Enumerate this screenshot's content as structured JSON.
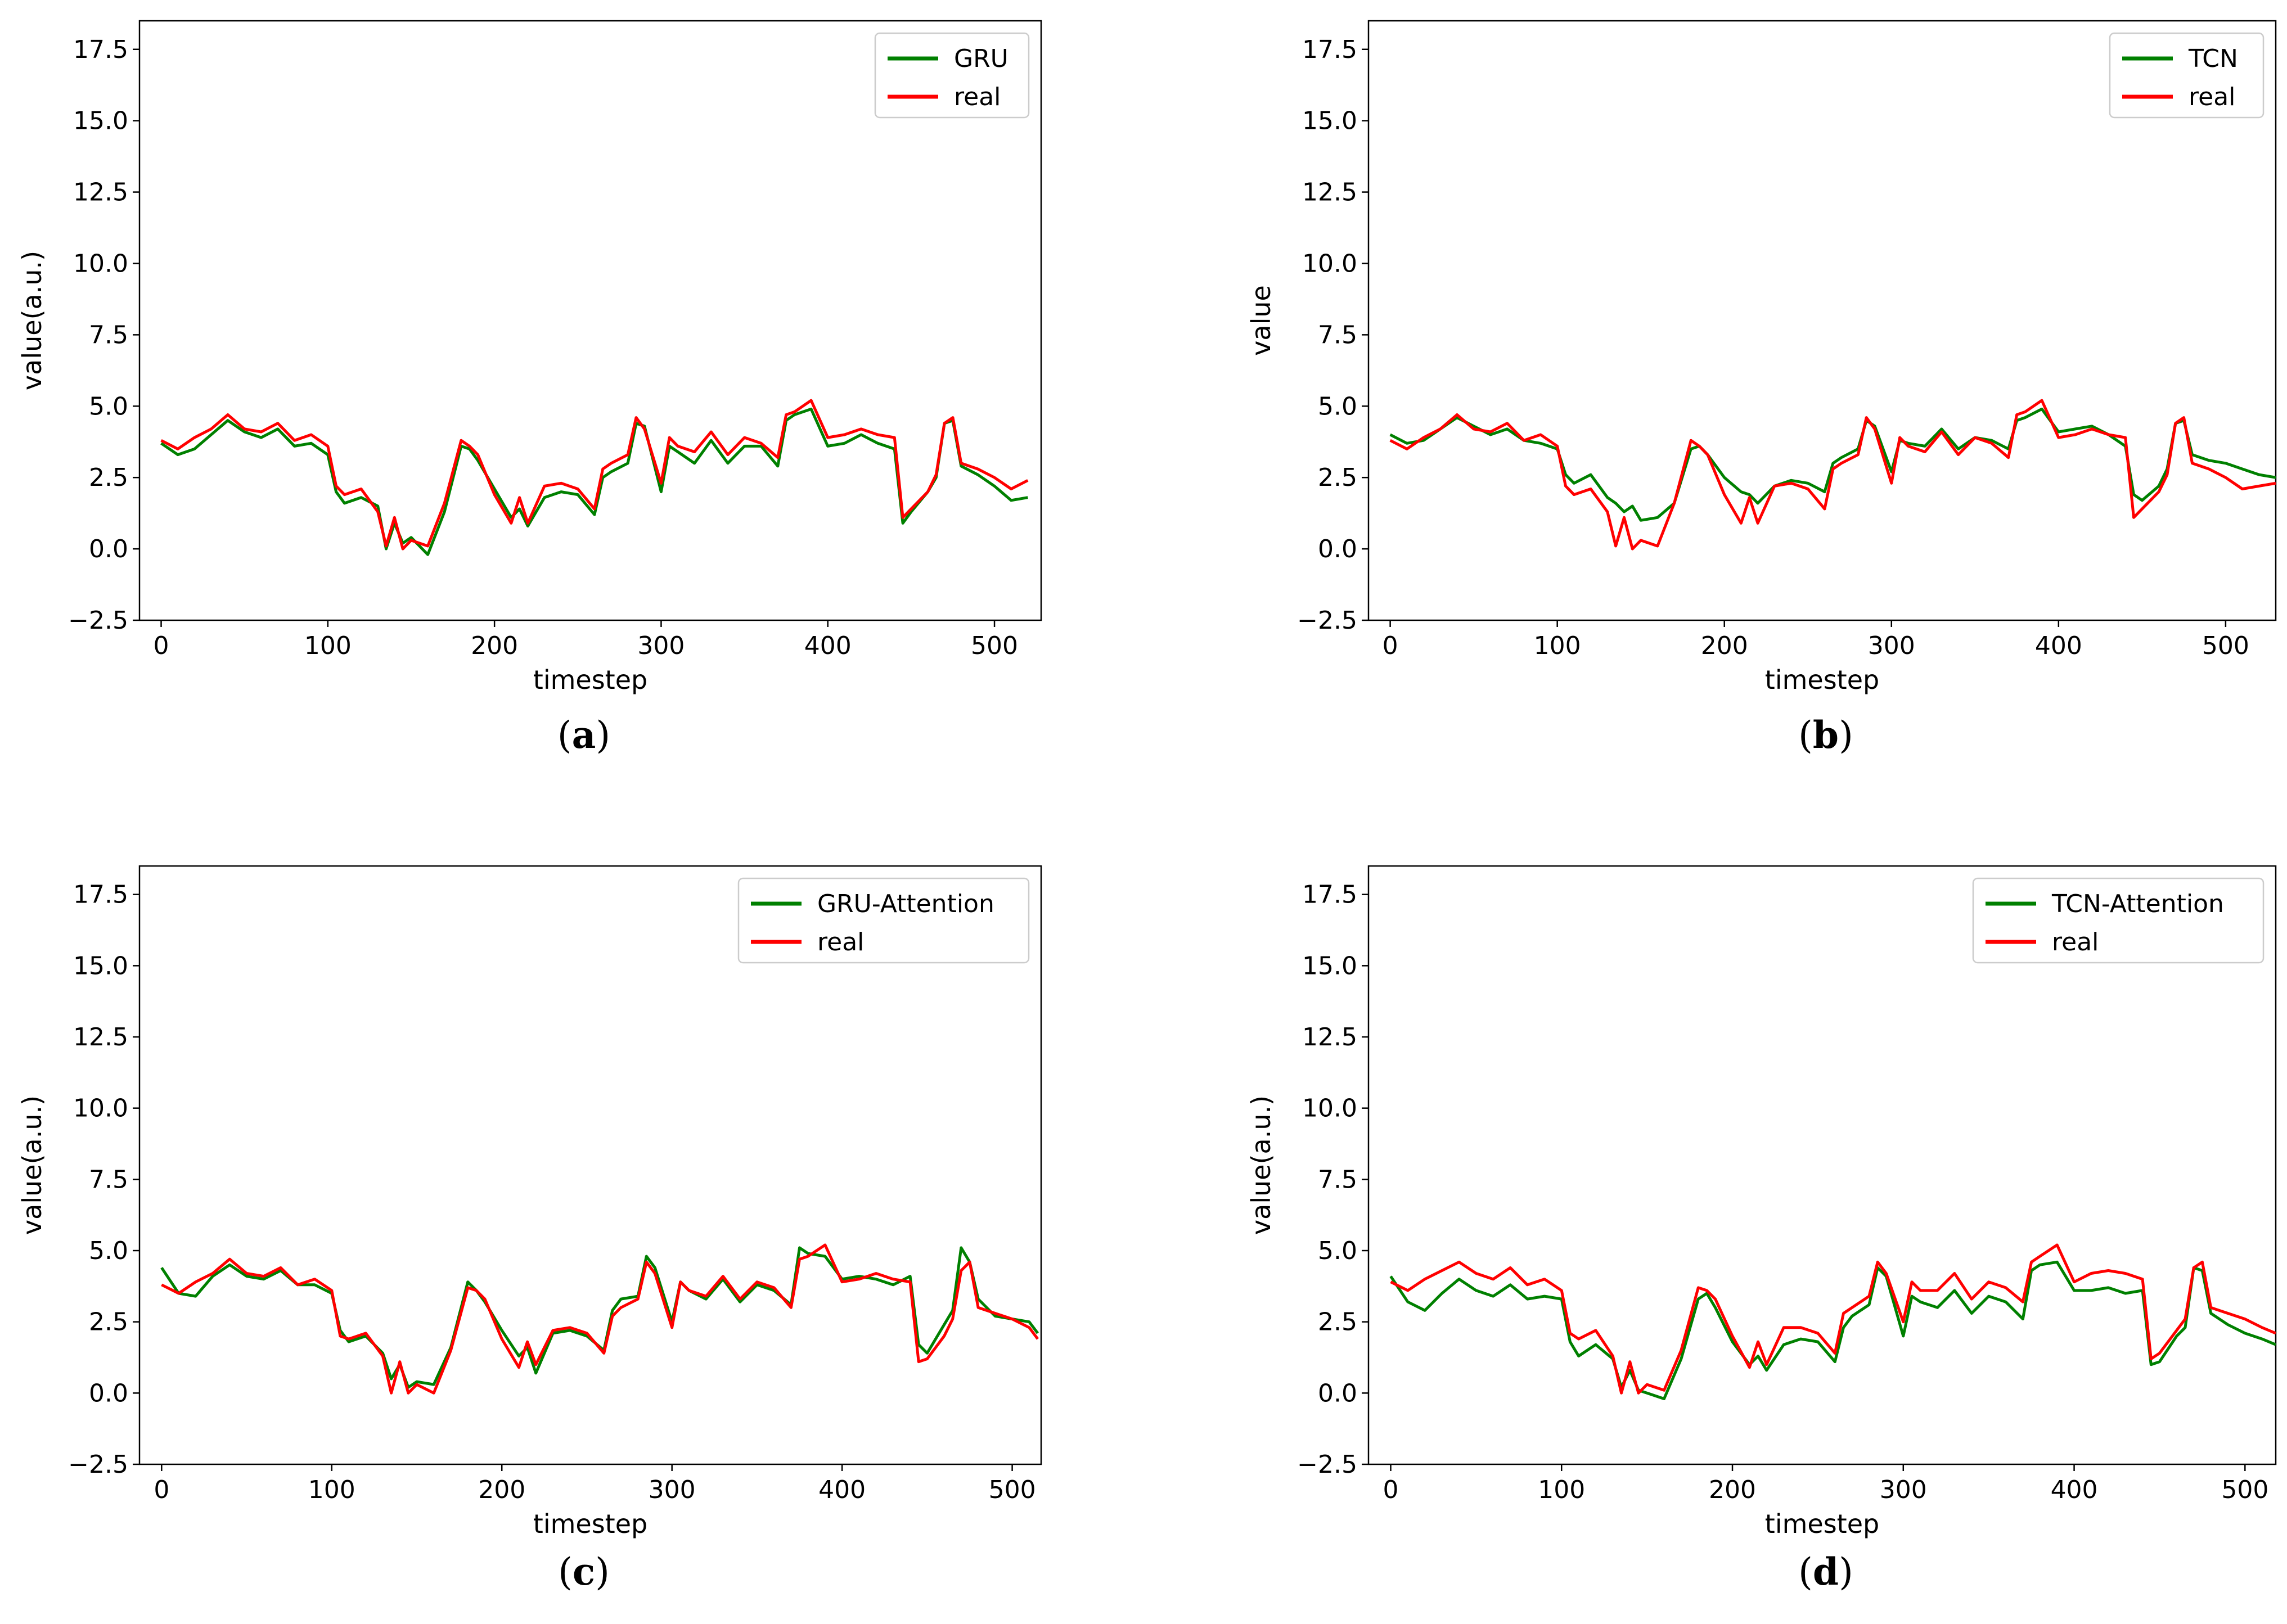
{
  "figure": {
    "panel_count": 4
  },
  "colors": {
    "prediction": "#008000",
    "real": "#ff0000",
    "axis": "#000000",
    "legend_edge": "#cccccc"
  },
  "chart_data": [
    {
      "type": "line",
      "panel": "a",
      "caption": {
        "open": "(",
        "letter": "a",
        "close": ")"
      },
      "title": "",
      "xlabel": "timestep",
      "ylabel": "value(a.u.)",
      "xlim": [
        -13,
        528
      ],
      "ylim": [
        -2.5,
        18.5
      ],
      "xticks": [
        0,
        100,
        200,
        300,
        400,
        500
      ],
      "yticks": [
        -2.5,
        0.0,
        2.5,
        5.0,
        7.5,
        10.0,
        12.5,
        15.0,
        17.5
      ],
      "ytick_labels": [
        "−2.5",
        "0.0",
        "2.5",
        "5.0",
        "7.5",
        "10.0",
        "12.5",
        "15.0",
        "17.5"
      ],
      "xtick_labels": [
        "0",
        "100",
        "200",
        "300",
        "400",
        "500"
      ],
      "legend": {
        "position": "top-right",
        "entries": [
          "GRU",
          "real"
        ]
      },
      "x": [
        0,
        10,
        20,
        30,
        40,
        50,
        60,
        70,
        80,
        90,
        100,
        105,
        110,
        120,
        130,
        135,
        140,
        145,
        150,
        160,
        170,
        180,
        185,
        190,
        200,
        210,
        215,
        220,
        230,
        240,
        250,
        260,
        265,
        270,
        280,
        285,
        290,
        300,
        305,
        310,
        320,
        330,
        340,
        350,
        360,
        370,
        375,
        380,
        390,
        400,
        410,
        420,
        430,
        440,
        445,
        450,
        460,
        465,
        470,
        475,
        480,
        490,
        500,
        510,
        520
      ],
      "series": [
        {
          "name": "GRU",
          "values": [
            3.7,
            3.3,
            3.5,
            4.0,
            4.5,
            4.1,
            3.9,
            4.2,
            3.6,
            3.7,
            3.3,
            2.0,
            1.6,
            1.8,
            1.5,
            0.0,
            0.9,
            0.2,
            0.4,
            -0.2,
            1.3,
            3.6,
            3.5,
            3.1,
            2.1,
            1.1,
            1.4,
            0.8,
            1.8,
            2.0,
            1.9,
            1.2,
            2.5,
            2.7,
            3.0,
            4.4,
            4.3,
            2.0,
            3.6,
            3.4,
            3.0,
            3.8,
            3.0,
            3.6,
            3.6,
            2.9,
            4.5,
            4.7,
            4.9,
            3.6,
            3.7,
            4.0,
            3.7,
            3.5,
            0.9,
            1.3,
            2.0,
            2.5,
            4.4,
            4.5,
            2.9,
            2.6,
            2.2,
            1.7,
            1.8
          ]
        },
        {
          "name": "real",
          "values": [
            3.8,
            3.5,
            3.9,
            4.2,
            4.7,
            4.2,
            4.1,
            4.4,
            3.8,
            4.0,
            3.6,
            2.2,
            1.9,
            2.1,
            1.3,
            0.1,
            1.1,
            0.0,
            0.3,
            0.1,
            1.6,
            3.8,
            3.6,
            3.3,
            1.9,
            0.9,
            1.8,
            0.9,
            2.2,
            2.3,
            2.1,
            1.4,
            2.8,
            3.0,
            3.3,
            4.6,
            4.2,
            2.3,
            3.9,
            3.6,
            3.4,
            4.1,
            3.3,
            3.9,
            3.7,
            3.2,
            4.7,
            4.8,
            5.2,
            3.9,
            4.0,
            4.2,
            4.0,
            3.9,
            1.1,
            1.4,
            2.0,
            2.6,
            4.4,
            4.6,
            3.0,
            2.8,
            2.5,
            2.1,
            2.4
          ]
        }
      ]
    },
    {
      "type": "line",
      "panel": "b",
      "caption": {
        "open": "(",
        "letter": "b",
        "close": ")"
      },
      "title": "",
      "xlabel": "timestep",
      "ylabel": "value",
      "xlim": [
        -13,
        530
      ],
      "ylim": [
        -2.5,
        18.5
      ],
      "xticks": [
        0,
        100,
        200,
        300,
        400,
        500
      ],
      "yticks": [
        -2.5,
        0.0,
        2.5,
        5.0,
        7.5,
        10.0,
        12.5,
        15.0,
        17.5
      ],
      "ytick_labels": [
        "−2.5",
        "0.0",
        "2.5",
        "5.0",
        "7.5",
        "10.0",
        "12.5",
        "15.0",
        "17.5"
      ],
      "xtick_labels": [
        "0",
        "100",
        "200",
        "300",
        "400",
        "500"
      ],
      "legend": {
        "position": "top-right",
        "entries": [
          "TCN",
          "real"
        ]
      },
      "x": [
        0,
        10,
        20,
        30,
        40,
        50,
        60,
        70,
        80,
        90,
        100,
        105,
        110,
        120,
        130,
        135,
        140,
        145,
        150,
        160,
        170,
        180,
        185,
        190,
        200,
        210,
        215,
        220,
        230,
        240,
        250,
        260,
        265,
        270,
        280,
        285,
        290,
        300,
        305,
        310,
        320,
        330,
        340,
        350,
        360,
        370,
        375,
        380,
        390,
        400,
        410,
        420,
        430,
        440,
        445,
        450,
        460,
        465,
        470,
        475,
        480,
        490,
        500,
        510,
        520,
        530
      ],
      "series": [
        {
          "name": "TCN",
          "values": [
            4.0,
            3.7,
            3.8,
            4.2,
            4.6,
            4.3,
            4.0,
            4.2,
            3.8,
            3.7,
            3.5,
            2.6,
            2.3,
            2.6,
            1.8,
            1.6,
            1.3,
            1.5,
            1.0,
            1.1,
            1.6,
            3.5,
            3.6,
            3.3,
            2.5,
            2.0,
            1.9,
            1.6,
            2.2,
            2.4,
            2.3,
            2.0,
            3.0,
            3.2,
            3.5,
            4.5,
            4.3,
            2.7,
            3.8,
            3.7,
            3.6,
            4.2,
            3.5,
            3.9,
            3.8,
            3.5,
            4.5,
            4.6,
            4.9,
            4.1,
            4.2,
            4.3,
            4.0,
            3.6,
            1.9,
            1.7,
            2.2,
            2.8,
            4.4,
            4.5,
            3.3,
            3.1,
            3.0,
            2.8,
            2.6,
            2.5
          ]
        },
        {
          "name": "real",
          "values": [
            3.8,
            3.5,
            3.9,
            4.2,
            4.7,
            4.2,
            4.1,
            4.4,
            3.8,
            4.0,
            3.6,
            2.2,
            1.9,
            2.1,
            1.3,
            0.1,
            1.1,
            0.0,
            0.3,
            0.1,
            1.6,
            3.8,
            3.6,
            3.3,
            1.9,
            0.9,
            1.8,
            0.9,
            2.2,
            2.3,
            2.1,
            1.4,
            2.8,
            3.0,
            3.3,
            4.6,
            4.2,
            2.3,
            3.9,
            3.6,
            3.4,
            4.1,
            3.3,
            3.9,
            3.7,
            3.2,
            4.7,
            4.8,
            5.2,
            3.9,
            4.0,
            4.2,
            4.0,
            3.9,
            1.1,
            1.4,
            2.0,
            2.6,
            4.4,
            4.6,
            3.0,
            2.8,
            2.5,
            2.1,
            2.2,
            2.3
          ]
        }
      ]
    },
    {
      "type": "line",
      "panel": "c",
      "caption": {
        "open": "(",
        "letter": "c",
        "close": ")"
      },
      "title": "",
      "xlabel": "timestep",
      "ylabel": "value(a.u.)",
      "xlim": [
        -13,
        517
      ],
      "ylim": [
        -2.5,
        18.5
      ],
      "xticks": [
        0,
        100,
        200,
        300,
        400,
        500
      ],
      "yticks": [
        -2.5,
        0.0,
        2.5,
        5.0,
        7.5,
        10.0,
        12.5,
        15.0,
        17.5
      ],
      "ytick_labels": [
        "−2.5",
        "0.0",
        "2.5",
        "5.0",
        "7.5",
        "10.0",
        "12.5",
        "15.0",
        "17.5"
      ],
      "xtick_labels": [
        "0",
        "100",
        "200",
        "300",
        "400",
        "500"
      ],
      "legend": {
        "position": "top-right",
        "entries": [
          "GRU-Attention",
          "real"
        ]
      },
      "x": [
        0,
        10,
        20,
        30,
        40,
        50,
        60,
        70,
        80,
        90,
        100,
        105,
        110,
        120,
        130,
        135,
        140,
        145,
        150,
        160,
        170,
        180,
        185,
        190,
        200,
        210,
        215,
        220,
        230,
        240,
        250,
        260,
        265,
        270,
        280,
        285,
        290,
        300,
        305,
        310,
        320,
        330,
        340,
        350,
        360,
        370,
        375,
        380,
        390,
        400,
        410,
        420,
        430,
        440,
        445,
        450,
        460,
        465,
        470,
        475,
        480,
        490,
        500,
        510,
        515
      ],
      "series": [
        {
          "name": "GRU-Attention",
          "values": [
            4.4,
            3.5,
            3.4,
            4.1,
            4.5,
            4.1,
            4.0,
            4.3,
            3.8,
            3.8,
            3.5,
            2.2,
            1.8,
            2.0,
            1.4,
            0.5,
            1.0,
            0.2,
            0.4,
            0.3,
            1.6,
            3.9,
            3.6,
            3.2,
            2.2,
            1.3,
            1.6,
            0.7,
            2.1,
            2.2,
            2.0,
            1.5,
            2.9,
            3.3,
            3.4,
            4.8,
            4.4,
            2.5,
            3.9,
            3.6,
            3.3,
            4.0,
            3.2,
            3.8,
            3.6,
            3.1,
            5.1,
            4.9,
            4.8,
            4.0,
            4.1,
            4.0,
            3.8,
            4.1,
            1.7,
            1.4,
            2.4,
            2.9,
            5.1,
            4.6,
            3.3,
            2.7,
            2.6,
            2.5,
            2.1
          ]
        },
        {
          "name": "real",
          "values": [
            3.8,
            3.5,
            3.9,
            4.2,
            4.7,
            4.2,
            4.1,
            4.4,
            3.8,
            4.0,
            3.6,
            2.0,
            1.9,
            2.1,
            1.3,
            0.0,
            1.1,
            0.0,
            0.3,
            0.0,
            1.5,
            3.7,
            3.6,
            3.3,
            1.9,
            0.9,
            1.8,
            1.0,
            2.2,
            2.3,
            2.1,
            1.4,
            2.7,
            3.0,
            3.3,
            4.6,
            4.2,
            2.3,
            3.9,
            3.6,
            3.4,
            4.1,
            3.3,
            3.9,
            3.7,
            3.0,
            4.7,
            4.8,
            5.2,
            3.9,
            4.0,
            4.2,
            4.0,
            3.9,
            1.1,
            1.2,
            2.0,
            2.6,
            4.3,
            4.6,
            3.0,
            2.8,
            2.6,
            2.3,
            1.9
          ]
        }
      ]
    },
    {
      "type": "line",
      "panel": "d",
      "caption": {
        "open": "(",
        "letter": "d",
        "close": ")"
      },
      "title": "",
      "xlabel": "timestep",
      "ylabel": "value(a.u.)",
      "xlim": [
        -13,
        518
      ],
      "ylim": [
        -2.5,
        18.5
      ],
      "xticks": [
        0,
        100,
        200,
        300,
        400,
        500
      ],
      "yticks": [
        -2.5,
        0.0,
        2.5,
        5.0,
        7.5,
        10.0,
        12.5,
        15.0,
        17.5
      ],
      "ytick_labels": [
        "−2.5",
        "0.0",
        "2.5",
        "5.0",
        "7.5",
        "10.0",
        "12.5",
        "15.0",
        "17.5"
      ],
      "xtick_labels": [
        "0",
        "100",
        "200",
        "300",
        "400",
        "500"
      ],
      "legend": {
        "position": "top-right",
        "entries": [
          "TCN-Attention",
          "real"
        ]
      },
      "x": [
        0,
        10,
        20,
        30,
        40,
        50,
        60,
        70,
        80,
        90,
        100,
        105,
        110,
        120,
        130,
        135,
        140,
        145,
        150,
        160,
        170,
        180,
        185,
        190,
        200,
        210,
        215,
        220,
        230,
        240,
        250,
        260,
        265,
        270,
        280,
        285,
        290,
        300,
        305,
        310,
        320,
        330,
        340,
        350,
        360,
        370,
        375,
        380,
        390,
        400,
        410,
        420,
        430,
        440,
        445,
        450,
        460,
        465,
        470,
        475,
        480,
        490,
        500,
        510,
        518
      ],
      "series": [
        {
          "name": "TCN-Attention",
          "values": [
            4.1,
            3.2,
            2.9,
            3.5,
            4.0,
            3.6,
            3.4,
            3.8,
            3.3,
            3.4,
            3.3,
            1.8,
            1.3,
            1.7,
            1.2,
            0.2,
            0.8,
            0.1,
            0.0,
            -0.2,
            1.2,
            3.3,
            3.5,
            3.0,
            1.8,
            1.0,
            1.3,
            0.8,
            1.7,
            1.9,
            1.8,
            1.1,
            2.3,
            2.7,
            3.1,
            4.4,
            4.1,
            2.0,
            3.4,
            3.2,
            3.0,
            3.6,
            2.8,
            3.4,
            3.2,
            2.6,
            4.3,
            4.5,
            4.6,
            3.6,
            3.6,
            3.7,
            3.5,
            3.6,
            1.0,
            1.1,
            2.0,
            2.3,
            4.4,
            4.3,
            2.8,
            2.4,
            2.1,
            1.9,
            1.7
          ]
        },
        {
          "name": "real",
          "values": [
            3.9,
            3.6,
            4.0,
            4.3,
            4.6,
            4.2,
            4.0,
            4.4,
            3.8,
            4.0,
            3.6,
            2.1,
            1.9,
            2.2,
            1.3,
            0.0,
            1.1,
            0.0,
            0.3,
            0.1,
            1.5,
            3.7,
            3.6,
            3.3,
            2.0,
            0.9,
            1.8,
            1.0,
            2.3,
            2.3,
            2.1,
            1.4,
            2.8,
            3.0,
            3.4,
            4.6,
            4.2,
            2.5,
            3.9,
            3.6,
            3.6,
            4.2,
            3.3,
            3.9,
            3.7,
            3.2,
            4.6,
            4.8,
            5.2,
            3.9,
            4.2,
            4.3,
            4.2,
            4.0,
            1.2,
            1.4,
            2.2,
            2.6,
            4.4,
            4.6,
            3.0,
            2.8,
            2.6,
            2.3,
            2.1
          ]
        }
      ]
    }
  ]
}
